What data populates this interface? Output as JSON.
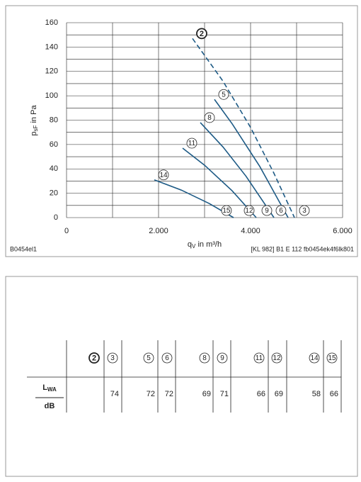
{
  "chart_data": {
    "type": "line",
    "y_label": {
      "main": "p",
      "sub": "sF",
      "rest": " in Pa"
    },
    "x_label": {
      "main": "q",
      "sub": "V",
      "rest": " in m³/h"
    },
    "code_left": "B0454el1",
    "code_right": "[KL 982] B1 E 112 fb0454ek4f6lk801",
    "xlim": [
      0,
      6000
    ],
    "xticks": [
      {
        "value": 0,
        "label": "0"
      },
      {
        "value": 2000,
        "label": "2.000"
      },
      {
        "value": 4000,
        "label": "4.000"
      },
      {
        "value": 6000,
        "label": "6.000"
      }
    ],
    "xgrid_minor": [
      1000,
      3000,
      5000
    ],
    "ylim": [
      0,
      160
    ],
    "yticks": [
      0,
      20,
      40,
      60,
      80,
      100,
      120,
      140,
      160
    ],
    "ygrid_minor": [
      10,
      30,
      50,
      70,
      90,
      110,
      130,
      150
    ],
    "grid": true,
    "series": [
      {
        "name": "2",
        "end_label": "3",
        "dashed": true,
        "bold": true,
        "color": "#1d5a85",
        "x": [
          2738,
          3400,
          4000,
          4500,
          4954
        ],
        "values": [
          147,
          112,
          74,
          37,
          0
        ]
      },
      {
        "name": "5",
        "end_label": "6",
        "dashed": false,
        "bold": false,
        "color": "#1d5a85",
        "x": [
          3215,
          3600,
          4200,
          4815
        ],
        "values": [
          97,
          77,
          42,
          0
        ]
      },
      {
        "name": "8",
        "end_label": "9",
        "dashed": false,
        "bold": false,
        "color": "#1d5a85",
        "x": [
          2908,
          3400,
          3900,
          4508
        ],
        "values": [
          78,
          58,
          34,
          0
        ]
      },
      {
        "name": "11",
        "end_label": "12",
        "dashed": false,
        "bold": false,
        "color": "#1d5a85",
        "x": [
          2523,
          3000,
          3600,
          4123
        ],
        "values": [
          57,
          43,
          22,
          0
        ]
      },
      {
        "name": "14",
        "end_label": "15",
        "dashed": false,
        "bold": false,
        "color": "#1d5a85",
        "x": [
          1908,
          2500,
          3100,
          3630
        ],
        "values": [
          31,
          22.5,
          11.6,
          0
        ]
      }
    ]
  },
  "table": {
    "header": [
      "2",
      "3",
      "5",
      "6",
      "8",
      "9",
      "11",
      "12",
      "14",
      "15"
    ],
    "row_label": {
      "main": "L",
      "sub": "WA"
    },
    "unit": "dB",
    "values": [
      null,
      74,
      72,
      72,
      69,
      71,
      66,
      69,
      58,
      66
    ]
  }
}
